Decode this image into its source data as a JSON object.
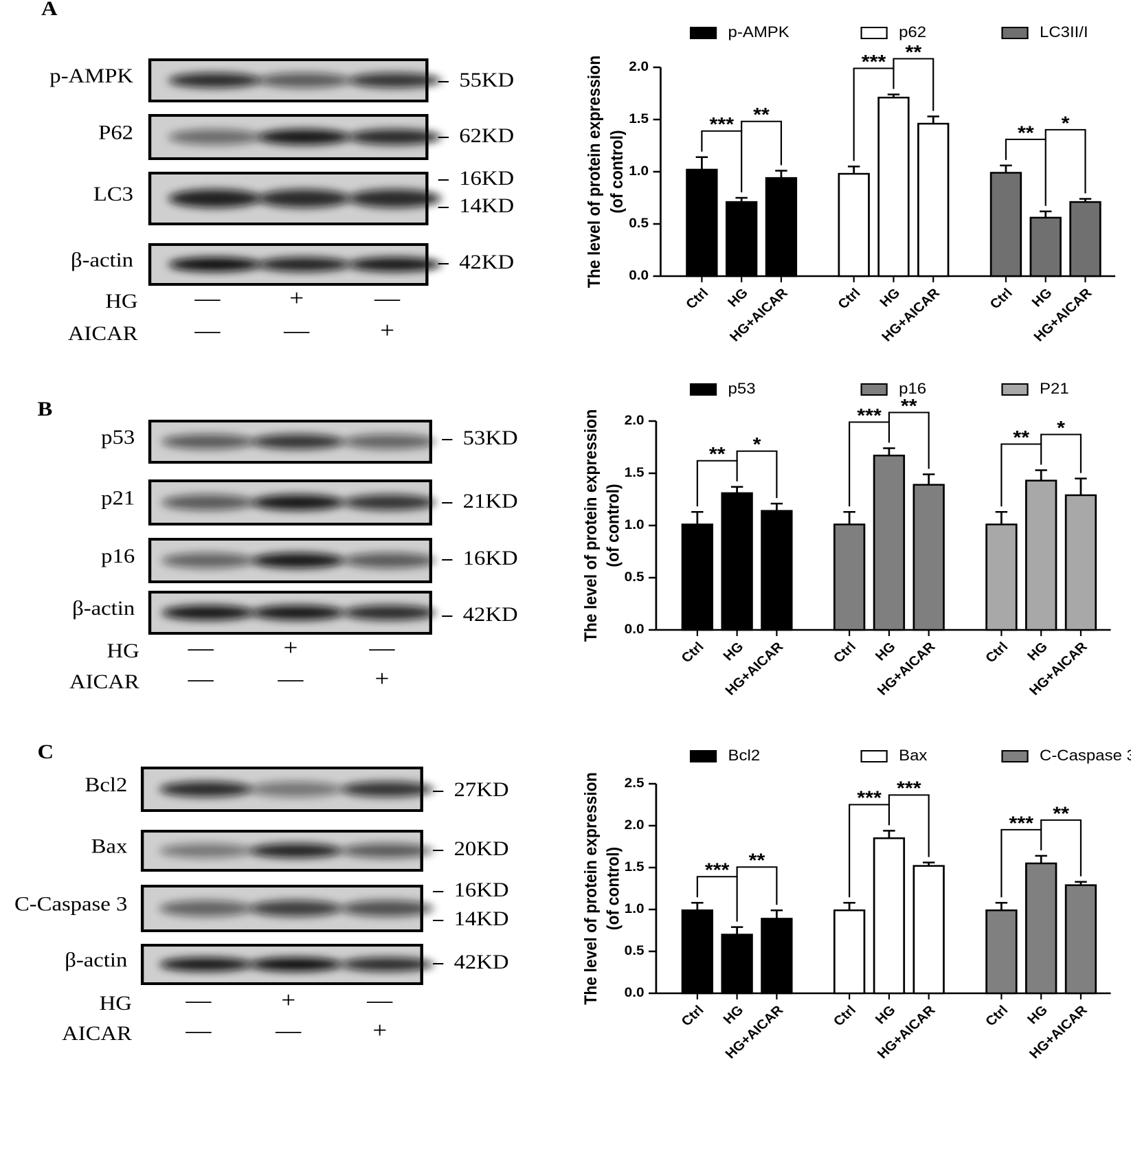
{
  "blots": [
    {
      "label": "A",
      "rows": [
        {
          "name": "p-AMPK",
          "markers": [
            "55KD"
          ]
        },
        {
          "name": "P62",
          "markers": [
            "62KD"
          ]
        },
        {
          "name": "LC3",
          "markers": [
            "16KD",
            "14KD"
          ]
        },
        {
          "name": "β-actin",
          "markers": [
            "42KD"
          ]
        }
      ],
      "treatments": [
        {
          "name": "HG",
          "signs": [
            "—",
            "+",
            "—"
          ]
        },
        {
          "name": "AICAR",
          "signs": [
            "—",
            "—",
            "+"
          ]
        }
      ]
    },
    {
      "label": "B",
      "rows": [
        {
          "name": "p53",
          "markers": [
            "53KD"
          ]
        },
        {
          "name": "p21",
          "markers": [
            "21KD"
          ]
        },
        {
          "name": "p16",
          "markers": [
            "16KD"
          ]
        },
        {
          "name": "β-actin",
          "markers": [
            "42KD"
          ]
        }
      ],
      "treatments": [
        {
          "name": "HG",
          "signs": [
            "—",
            "+",
            "—"
          ]
        },
        {
          "name": "AICAR",
          "signs": [
            "—",
            "—",
            "+"
          ]
        }
      ]
    },
    {
      "label": "C",
      "rows": [
        {
          "name": "Bcl2",
          "markers": [
            "27KD"
          ]
        },
        {
          "name": "Bax",
          "markers": [
            "20KD"
          ]
        },
        {
          "name": "C-Caspase 3",
          "markers": [
            "16KD",
            "14KD"
          ]
        },
        {
          "name": "β-actin",
          "markers": [
            "42KD"
          ]
        }
      ],
      "treatments": [
        {
          "name": "HG",
          "signs": [
            "—",
            "+",
            "—"
          ]
        },
        {
          "name": "AICAR",
          "signs": [
            "—",
            "—",
            "+"
          ]
        }
      ]
    }
  ],
  "chart_data": [
    {
      "type": "bar",
      "ylabel": [
        "The level of protein expression",
        "(of control)"
      ],
      "categories": [
        "Ctrl",
        "HG",
        "HG+AICAR"
      ],
      "ylim": [
        0,
        2.0
      ],
      "yticks": [
        {
          "value": 0,
          "label": "0.0"
        },
        {
          "value": 0.5,
          "label": "0.5"
        },
        {
          "value": 1.0,
          "label": "1.0"
        },
        {
          "value": 1.5,
          "label": "1.5"
        },
        {
          "value": 2.0,
          "label": "2.0"
        }
      ],
      "legend": "top",
      "series": [
        {
          "name": "p-AMPK",
          "color": "#000000",
          "values": [
            1.02,
            0.71,
            0.94
          ],
          "errors": [
            0.12,
            0.04,
            0.07
          ],
          "significance": [
            "***",
            "**"
          ]
        },
        {
          "name": "p62",
          "color": "#ffffff",
          "values": [
            0.98,
            1.71,
            1.46
          ],
          "errors": [
            0.07,
            0.03,
            0.07
          ],
          "significance": [
            "***",
            "**"
          ]
        },
        {
          "name": "LC3II/I",
          "color": "#707070",
          "values": [
            0.99,
            0.56,
            0.71
          ],
          "errors": [
            0.07,
            0.06,
            0.03
          ],
          "significance": [
            "**",
            "*"
          ]
        }
      ]
    },
    {
      "type": "bar",
      "ylabel": [
        "The level of protein expression",
        "(of control)"
      ],
      "categories": [
        "Ctrl",
        "HG",
        "HG+AICAR"
      ],
      "ylim": [
        0,
        2.0
      ],
      "yticks": [
        {
          "value": 0,
          "label": "0.0"
        },
        {
          "value": 0.5,
          "label": "0.5"
        },
        {
          "value": 1.0,
          "label": "1.0"
        },
        {
          "value": 1.5,
          "label": "1.5"
        },
        {
          "value": 2.0,
          "label": "2.0"
        }
      ],
      "legend": "top",
      "series": [
        {
          "name": "p53",
          "color": "#000000",
          "values": [
            1.01,
            1.31,
            1.14
          ],
          "errors": [
            0.12,
            0.06,
            0.07
          ],
          "significance": [
            "**",
            "*"
          ]
        },
        {
          "name": "p16",
          "color": "#7f7f7f",
          "values": [
            1.01,
            1.67,
            1.39
          ],
          "errors": [
            0.12,
            0.07,
            0.1
          ],
          "significance": [
            "***",
            "**"
          ]
        },
        {
          "name": "P21",
          "color": "#a8a8a8",
          "values": [
            1.01,
            1.43,
            1.29
          ],
          "errors": [
            0.12,
            0.1,
            0.16
          ],
          "significance": [
            "**",
            "*"
          ]
        }
      ]
    },
    {
      "type": "bar",
      "ylabel": [
        "The level of protein expression",
        "(of control)"
      ],
      "categories": [
        "Ctrl",
        "HG",
        "HG+AICAR"
      ],
      "ylim": [
        0,
        2.5
      ],
      "yticks": [
        {
          "value": 0,
          "label": "0.0"
        },
        {
          "value": 0.5,
          "label": "0.5"
        },
        {
          "value": 1.0,
          "label": "1.0"
        },
        {
          "value": 1.5,
          "label": "1.5"
        },
        {
          "value": 2.0,
          "label": "2.0"
        },
        {
          "value": 2.5,
          "label": "2.5"
        }
      ],
      "legend": "top",
      "series": [
        {
          "name": "Bcl2",
          "color": "#000000",
          "values": [
            0.99,
            0.7,
            0.89
          ],
          "errors": [
            0.09,
            0.09,
            0.1
          ],
          "significance": [
            "***",
            "**"
          ]
        },
        {
          "name": "Bax",
          "color": "#ffffff",
          "values": [
            0.99,
            1.85,
            1.52
          ],
          "errors": [
            0.09,
            0.09,
            0.04
          ],
          "significance": [
            "***",
            "***"
          ]
        },
        {
          "name": "C-Caspase 3",
          "color": "#808080",
          "values": [
            0.99,
            1.55,
            1.29
          ],
          "errors": [
            0.09,
            0.09,
            0.04
          ],
          "significance": [
            "***",
            "**"
          ]
        }
      ]
    }
  ]
}
